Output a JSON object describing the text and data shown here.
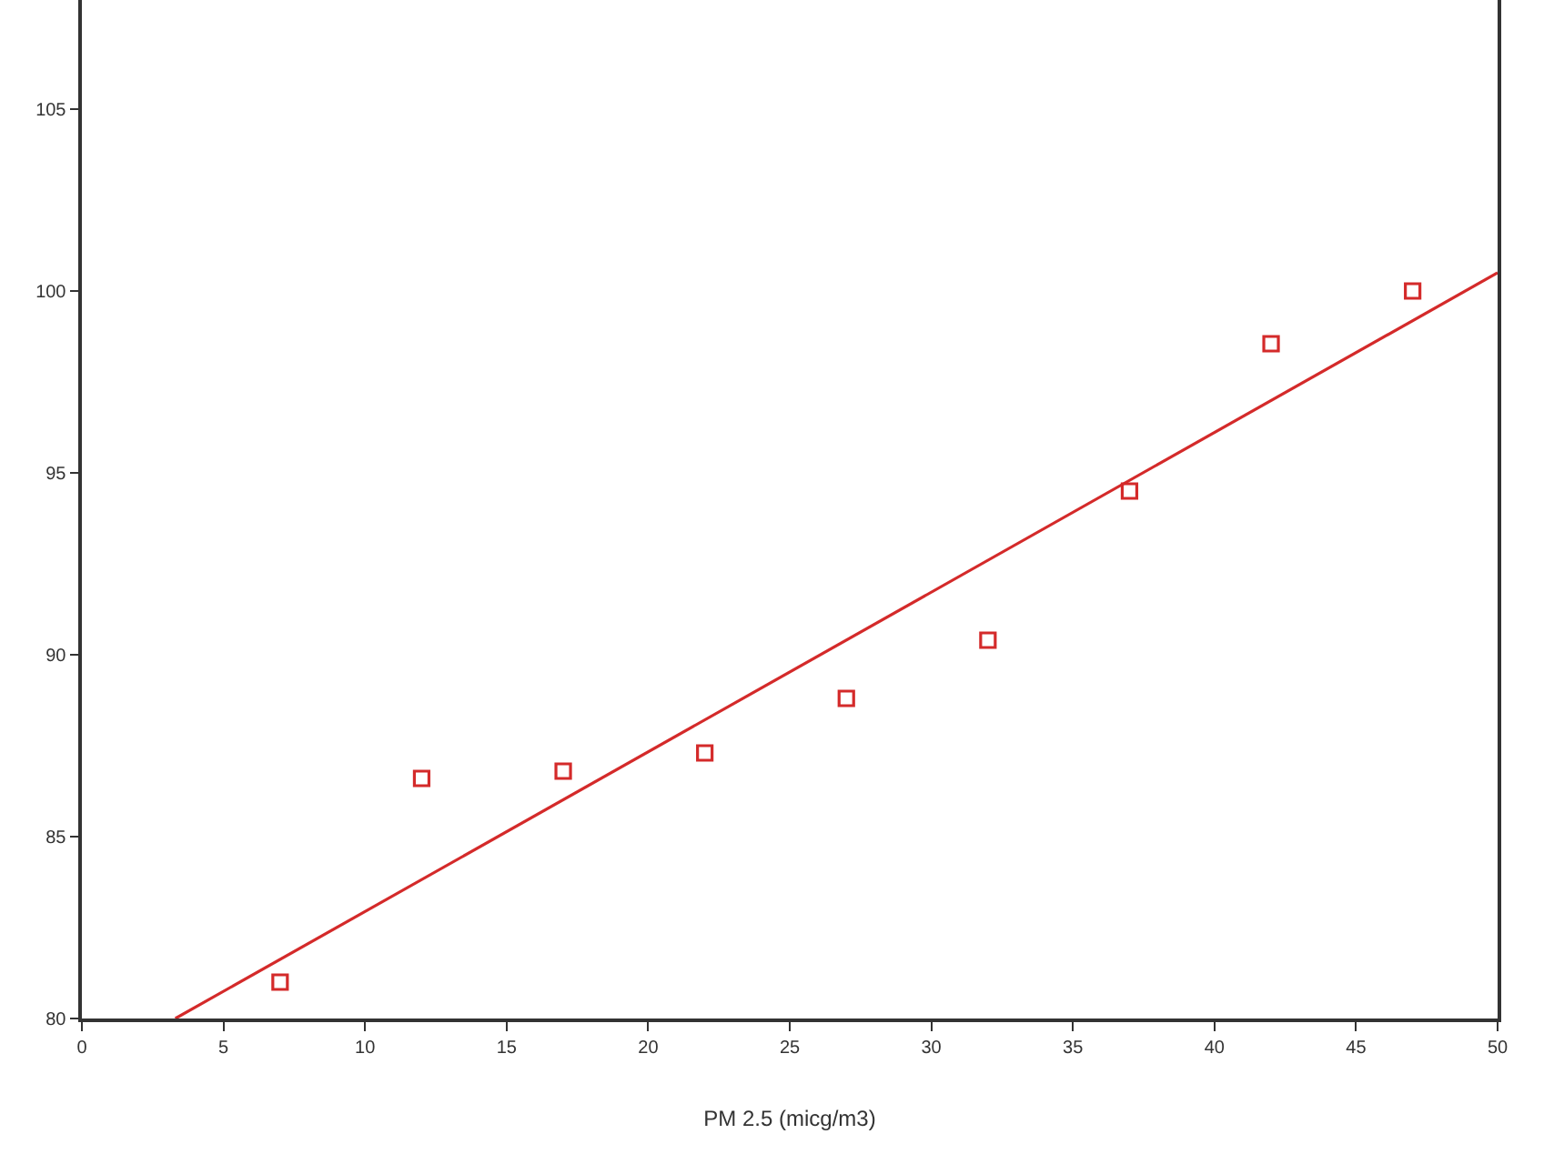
{
  "chart_data": {
    "type": "scatter",
    "xlabel": "PM 2.5 (micg/m3)",
    "series": [
      {
        "color": "#d42a2a",
        "marker": "square",
        "x": [
          7,
          12,
          17,
          22,
          27,
          32,
          37,
          42,
          47
        ],
        "values": [
          81.0,
          86.6,
          86.8,
          87.3,
          88.8,
          90.4,
          94.5,
          98.55,
          100.0
        ]
      },
      {
        "type": "line",
        "color": "#d42a2a",
        "x": [
          3.3,
          50
        ],
        "values": [
          80,
          100.5
        ]
      }
    ],
    "xlim": [
      0,
      50
    ],
    "xticks": [
      0,
      5,
      10,
      15,
      20,
      25,
      30,
      35,
      40,
      45,
      50
    ],
    "ylim": [
      80,
      108
    ],
    "yticks": [
      80,
      85,
      90,
      95,
      100,
      105
    ]
  }
}
